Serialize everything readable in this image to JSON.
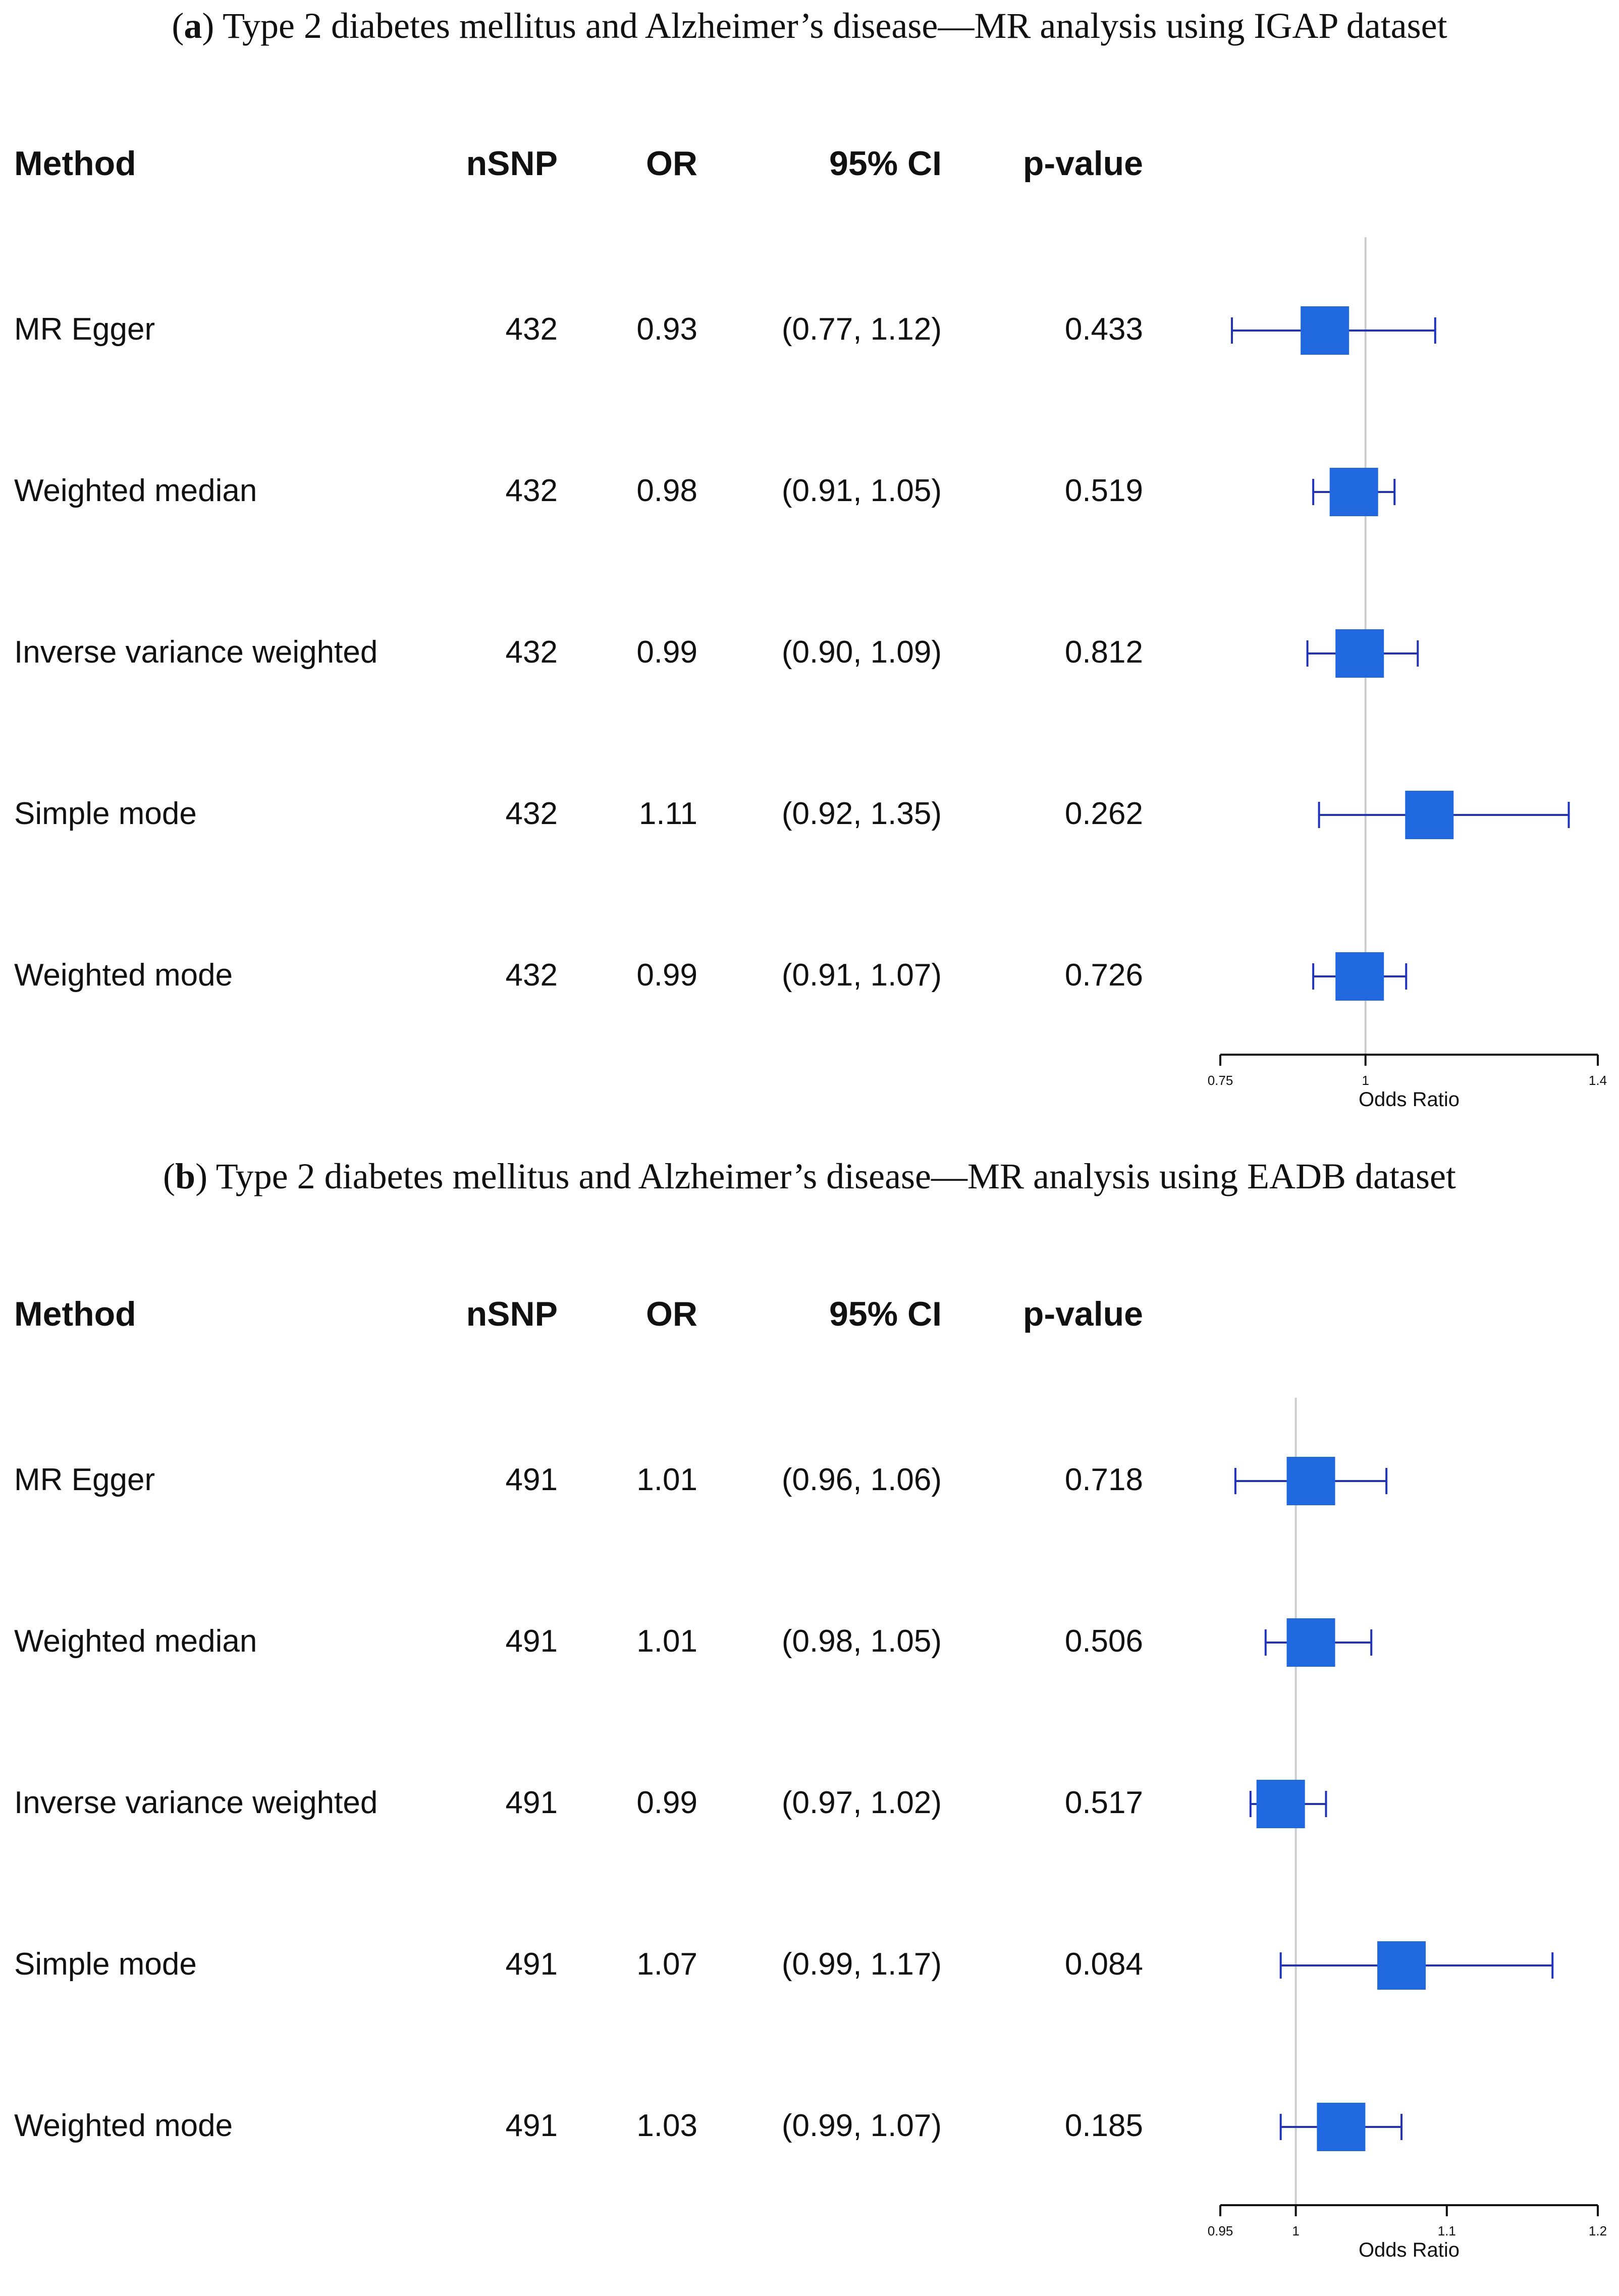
{
  "chart_data": [
    {
      "type": "forest",
      "panel_label": "a",
      "title": ") Type 2 diabetes mellitus and Alzheimer’s disease—MR analysis using IGAP dataset",
      "columns": [
        "Method",
        "nSNP",
        "OR",
        "95% CI",
        "p-value"
      ],
      "rows": [
        {
          "method": "MR Egger",
          "nsnp": "432",
          "or_label": "0.93",
          "ci_label": "(0.77, 1.12)",
          "p": "0.433",
          "or": 0.93,
          "lo": 0.77,
          "hi": 1.12
        },
        {
          "method": "Weighted median",
          "nsnp": "432",
          "or_label": "0.98",
          "ci_label": "(0.91, 1.05)",
          "p": "0.519",
          "or": 0.98,
          "lo": 0.91,
          "hi": 1.05
        },
        {
          "method": "Inverse variance weighted",
          "nsnp": "432",
          "or_label": "0.99",
          "ci_label": "(0.90, 1.09)",
          "p": "0.812",
          "or": 0.99,
          "lo": 0.9,
          "hi": 1.09
        },
        {
          "method": "Simple mode",
          "nsnp": "432",
          "or_label": "1.11",
          "ci_label": "(0.92, 1.35)",
          "p": "0.262",
          "or": 1.11,
          "lo": 0.92,
          "hi": 1.35
        },
        {
          "method": "Weighted mode",
          "nsnp": "432",
          "or_label": "0.99",
          "ci_label": "(0.91, 1.07)",
          "p": "0.726",
          "or": 0.99,
          "lo": 0.91,
          "hi": 1.07
        }
      ],
      "xlim": [
        0.75,
        1.4
      ],
      "xticks": [
        0.75,
        1,
        1.4
      ],
      "xtick_labels": [
        "0.75",
        "1",
        "1.4"
      ],
      "reference_line": 1,
      "xlabel": "Odds Ratio"
    },
    {
      "type": "forest",
      "panel_label": "b",
      "title": ") Type 2 diabetes mellitus and Alzheimer’s disease—MR analysis using EADB dataset",
      "columns": [
        "Method",
        "nSNP",
        "OR",
        "95% CI",
        "p-value"
      ],
      "rows": [
        {
          "method": "MR Egger",
          "nsnp": "491",
          "or_label": "1.01",
          "ci_label": "(0.96, 1.06)",
          "p": "0.718",
          "or": 1.01,
          "lo": 0.96,
          "hi": 1.06
        },
        {
          "method": "Weighted median",
          "nsnp": "491",
          "or_label": "1.01",
          "ci_label": "(0.98, 1.05)",
          "p": "0.506",
          "or": 1.01,
          "lo": 0.98,
          "hi": 1.05
        },
        {
          "method": "Inverse variance weighted",
          "nsnp": "491",
          "or_label": "0.99",
          "ci_label": "(0.97, 1.02)",
          "p": "0.517",
          "or": 0.99,
          "lo": 0.97,
          "hi": 1.02
        },
        {
          "method": "Simple mode",
          "nsnp": "491",
          "or_label": "1.07",
          "ci_label": "(0.99, 1.17)",
          "p": "0.084",
          "or": 1.07,
          "lo": 0.99,
          "hi": 1.17
        },
        {
          "method": "Weighted mode",
          "nsnp": "491",
          "or_label": "1.03",
          "ci_label": "(0.99, 1.07)",
          "p": "0.185",
          "or": 1.03,
          "lo": 0.99,
          "hi": 1.07
        }
      ],
      "xlim": [
        0.95,
        1.2
      ],
      "xticks": [
        0.95,
        1,
        1.1,
        1.2
      ],
      "xtick_labels": [
        "0.95",
        "1",
        "1.1",
        "1.2"
      ],
      "reference_line": 1,
      "xlabel": "Odds Ratio"
    }
  ],
  "colors": {
    "box": "#1f68e0",
    "whisker": "#2233bb",
    "reference": "#cccccc",
    "axis": "#111111"
  }
}
